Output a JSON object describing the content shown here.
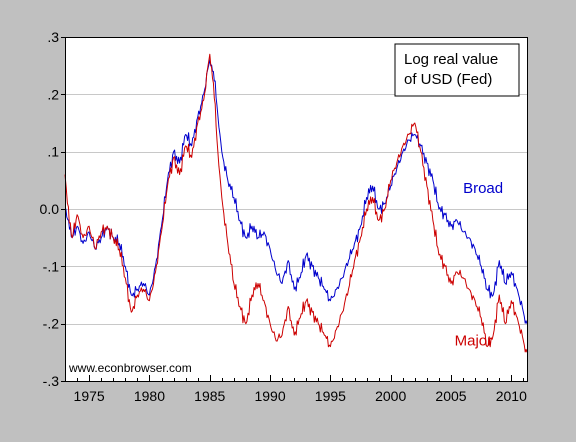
{
  "chart_data": {
    "type": "line",
    "title": "",
    "xlabel": "",
    "ylabel": "",
    "xlim": [
      1973,
      2011.3
    ],
    "ylim": [
      -0.3,
      0.3
    ],
    "x_ticks": [
      1975,
      1980,
      1985,
      1990,
      1995,
      2000,
      2005,
      2010
    ],
    "x_tick_labels": [
      "1975",
      "1980",
      "1985",
      "1990",
      "1995",
      "2000",
      "2005",
      "2010"
    ],
    "y_ticks": [
      0.3,
      0.2,
      0.1,
      0.0,
      -0.1,
      -0.2,
      -0.3
    ],
    "y_tick_labels": [
      ".3",
      ".2",
      ".1",
      "0.0",
      "-.1",
      "-.2",
      "-.3"
    ],
    "grid": "horizontal",
    "legend_box": {
      "line1": "Log real value",
      "line2": "of USD (Fed)",
      "placement": "top-right"
    },
    "credit": "www.econbrowser.com",
    "series": [
      {
        "name": "Broad",
        "color": "#0000cc",
        "points": [
          [
            1973.0,
            0.0
          ],
          [
            1973.3,
            -0.02
          ],
          [
            1973.6,
            -0.05
          ],
          [
            1974.0,
            -0.03
          ],
          [
            1974.5,
            -0.06
          ],
          [
            1975.0,
            -0.04
          ],
          [
            1975.5,
            -0.07
          ],
          [
            1976.0,
            -0.05
          ],
          [
            1976.5,
            -0.03
          ],
          [
            1977.0,
            -0.05
          ],
          [
            1977.5,
            -0.06
          ],
          [
            1978.0,
            -0.1
          ],
          [
            1978.5,
            -0.15
          ],
          [
            1979.0,
            -0.14
          ],
          [
            1979.5,
            -0.13
          ],
          [
            1980.0,
            -0.15
          ],
          [
            1980.5,
            -0.1
          ],
          [
            1981.0,
            -0.03
          ],
          [
            1981.5,
            0.05
          ],
          [
            1982.0,
            0.1
          ],
          [
            1982.5,
            0.08
          ],
          [
            1983.0,
            0.13
          ],
          [
            1983.5,
            0.11
          ],
          [
            1984.0,
            0.16
          ],
          [
            1984.5,
            0.2
          ],
          [
            1985.0,
            0.26
          ],
          [
            1985.3,
            0.24
          ],
          [
            1985.6,
            0.18
          ],
          [
            1986.0,
            0.1
          ],
          [
            1986.5,
            0.05
          ],
          [
            1987.0,
            0.02
          ],
          [
            1987.5,
            -0.02
          ],
          [
            1988.0,
            -0.05
          ],
          [
            1988.5,
            -0.03
          ],
          [
            1989.0,
            -0.05
          ],
          [
            1989.5,
            -0.04
          ],
          [
            1990.0,
            -0.07
          ],
          [
            1990.5,
            -0.11
          ],
          [
            1991.0,
            -0.13
          ],
          [
            1991.5,
            -0.09
          ],
          [
            1992.0,
            -0.14
          ],
          [
            1992.5,
            -0.12
          ],
          [
            1993.0,
            -0.08
          ],
          [
            1993.5,
            -0.1
          ],
          [
            1994.0,
            -0.12
          ],
          [
            1994.5,
            -0.14
          ],
          [
            1995.0,
            -0.16
          ],
          [
            1995.5,
            -0.14
          ],
          [
            1996.0,
            -0.12
          ],
          [
            1996.5,
            -0.09
          ],
          [
            1997.0,
            -0.06
          ],
          [
            1997.5,
            -0.03
          ],
          [
            1998.0,
            0.02
          ],
          [
            1998.5,
            0.04
          ],
          [
            1999.0,
            0.0
          ],
          [
            1999.5,
            0.01
          ],
          [
            2000.0,
            0.04
          ],
          [
            2000.5,
            0.07
          ],
          [
            2001.0,
            0.1
          ],
          [
            2001.5,
            0.12
          ],
          [
            2002.0,
            0.13
          ],
          [
            2002.5,
            0.11
          ],
          [
            2003.0,
            0.08
          ],
          [
            2003.5,
            0.05
          ],
          [
            2004.0,
            0.0
          ],
          [
            2004.5,
            -0.01
          ],
          [
            2005.0,
            -0.03
          ],
          [
            2005.5,
            -0.02
          ],
          [
            2006.0,
            -0.04
          ],
          [
            2006.5,
            -0.05
          ],
          [
            2007.0,
            -0.07
          ],
          [
            2007.5,
            -0.1
          ],
          [
            2008.0,
            -0.14
          ],
          [
            2008.5,
            -0.15
          ],
          [
            2009.0,
            -0.09
          ],
          [
            2009.5,
            -0.13
          ],
          [
            2010.0,
            -0.11
          ],
          [
            2010.5,
            -0.14
          ],
          [
            2011.0,
            -0.18
          ],
          [
            2011.3,
            -0.2
          ]
        ]
      },
      {
        "name": "Major",
        "color": "#cc0000",
        "points": [
          [
            1973.0,
            0.06
          ],
          [
            1973.2,
            0.01
          ],
          [
            1973.6,
            -0.05
          ],
          [
            1974.0,
            -0.01
          ],
          [
            1974.5,
            -0.05
          ],
          [
            1975.0,
            -0.03
          ],
          [
            1975.5,
            -0.07
          ],
          [
            1976.0,
            -0.04
          ],
          [
            1976.5,
            -0.03
          ],
          [
            1977.0,
            -0.05
          ],
          [
            1977.5,
            -0.07
          ],
          [
            1978.0,
            -0.12
          ],
          [
            1978.5,
            -0.18
          ],
          [
            1979.0,
            -0.15
          ],
          [
            1979.5,
            -0.14
          ],
          [
            1980.0,
            -0.16
          ],
          [
            1980.5,
            -0.11
          ],
          [
            1981.0,
            -0.04
          ],
          [
            1981.5,
            0.04
          ],
          [
            1982.0,
            0.09
          ],
          [
            1982.5,
            0.06
          ],
          [
            1983.0,
            0.11
          ],
          [
            1983.5,
            0.09
          ],
          [
            1984.0,
            0.15
          ],
          [
            1984.5,
            0.19
          ],
          [
            1985.0,
            0.27
          ],
          [
            1985.3,
            0.22
          ],
          [
            1985.6,
            0.12
          ],
          [
            1986.0,
            0.02
          ],
          [
            1986.5,
            -0.06
          ],
          [
            1987.0,
            -0.13
          ],
          [
            1987.5,
            -0.17
          ],
          [
            1988.0,
            -0.2
          ],
          [
            1988.5,
            -0.15
          ],
          [
            1989.0,
            -0.13
          ],
          [
            1989.5,
            -0.16
          ],
          [
            1990.0,
            -0.2
          ],
          [
            1990.5,
            -0.23
          ],
          [
            1991.0,
            -0.22
          ],
          [
            1991.5,
            -0.17
          ],
          [
            1992.0,
            -0.22
          ],
          [
            1992.5,
            -0.19
          ],
          [
            1993.0,
            -0.16
          ],
          [
            1993.5,
            -0.18
          ],
          [
            1994.0,
            -0.2
          ],
          [
            1994.5,
            -0.22
          ],
          [
            1995.0,
            -0.24
          ],
          [
            1995.5,
            -0.21
          ],
          [
            1996.0,
            -0.18
          ],
          [
            1996.5,
            -0.14
          ],
          [
            1997.0,
            -0.09
          ],
          [
            1997.5,
            -0.05
          ],
          [
            1998.0,
            0.0
          ],
          [
            1998.5,
            0.02
          ],
          [
            1999.0,
            -0.02
          ],
          [
            1999.5,
            0.0
          ],
          [
            2000.0,
            0.05
          ],
          [
            2000.5,
            0.08
          ],
          [
            2001.0,
            0.11
          ],
          [
            2001.5,
            0.13
          ],
          [
            2002.0,
            0.15
          ],
          [
            2002.5,
            0.1
          ],
          [
            2003.0,
            0.04
          ],
          [
            2003.5,
            -0.02
          ],
          [
            2004.0,
            -0.08
          ],
          [
            2004.5,
            -0.1
          ],
          [
            2005.0,
            -0.13
          ],
          [
            2005.5,
            -0.11
          ],
          [
            2006.0,
            -0.12
          ],
          [
            2006.5,
            -0.14
          ],
          [
            2007.0,
            -0.16
          ],
          [
            2007.5,
            -0.19
          ],
          [
            2008.0,
            -0.24
          ],
          [
            2008.5,
            -0.22
          ],
          [
            2009.0,
            -0.15
          ],
          [
            2009.5,
            -0.2
          ],
          [
            2010.0,
            -0.16
          ],
          [
            2010.5,
            -0.19
          ],
          [
            2011.0,
            -0.23
          ],
          [
            2011.3,
            -0.25
          ]
        ]
      }
    ],
    "series_labels": [
      {
        "text": "Broad",
        "color": "#0000cc",
        "x": 2006.0,
        "y": 0.028
      },
      {
        "text": "Major",
        "color": "#cc0000",
        "x": 2005.3,
        "y": -0.238
      }
    ]
  }
}
